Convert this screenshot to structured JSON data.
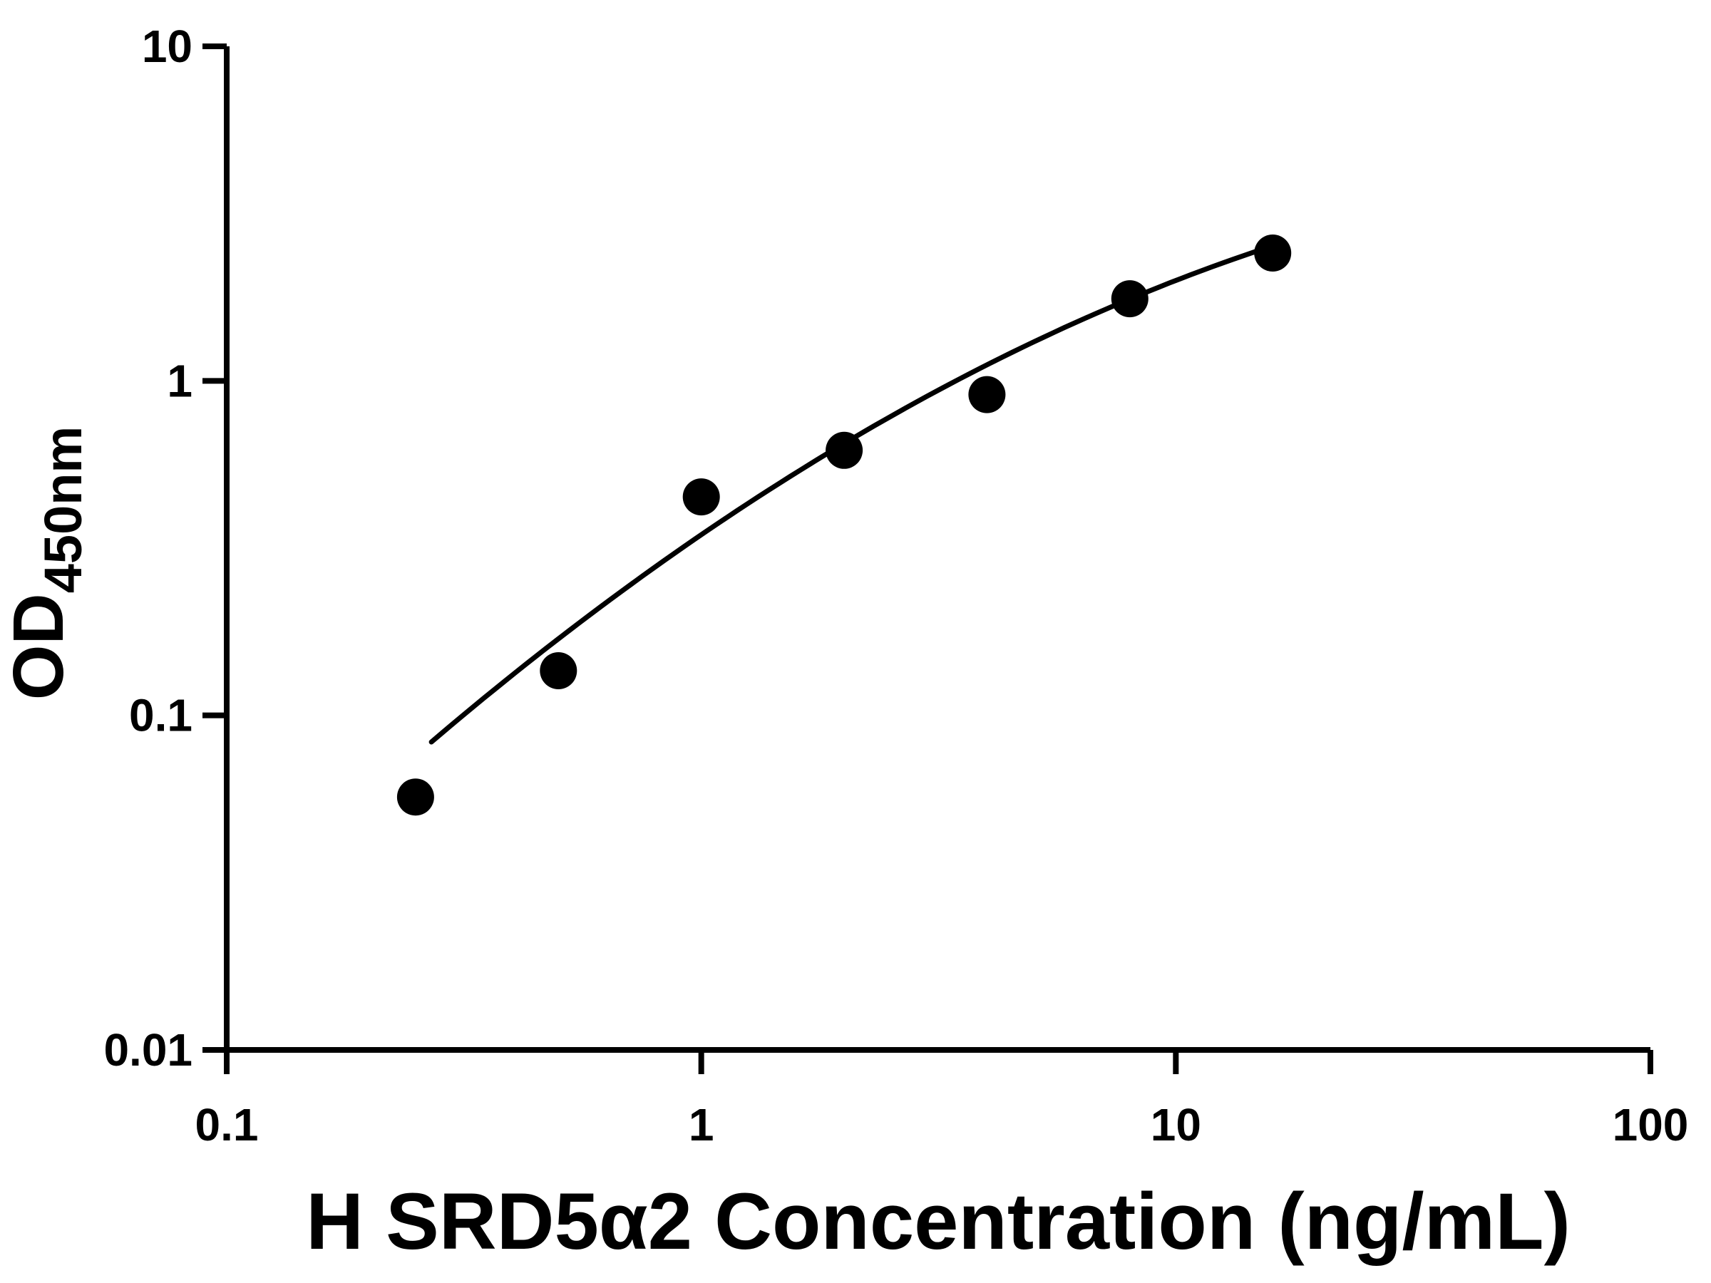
{
  "figure": {
    "background": "#ffffff",
    "foreground": "#000000"
  },
  "chart_data": {
    "type": "scatter",
    "title": "",
    "xlabel": "H SRD5α2 Concentration (ng/mL)",
    "ylabel": "OD450nm",
    "ylabel_main": "OD",
    "ylabel_sub": "450nm",
    "x_scale": "log",
    "y_scale": "log",
    "xlim": [
      0.1,
      100
    ],
    "ylim": [
      0.01,
      10
    ],
    "grid": false,
    "legend": false,
    "x_ticks": [
      {
        "value": 0.1,
        "label": "0.1"
      },
      {
        "value": 1,
        "label": "1"
      },
      {
        "value": 10,
        "label": "10"
      },
      {
        "value": 100,
        "label": "100"
      }
    ],
    "y_ticks": [
      {
        "value": 0.01,
        "label": "0.01"
      },
      {
        "value": 0.1,
        "label": "0.1"
      },
      {
        "value": 1,
        "label": "1"
      },
      {
        "value": 10,
        "label": "10"
      }
    ],
    "series": [
      {
        "name": "fitted-curve",
        "type": "line",
        "color": "#000000",
        "fit": {
          "model": "loglog-quadratic",
          "a": -0.46,
          "b": 0.97,
          "c": -0.21,
          "x_range": [
            0.27,
            16.2
          ]
        }
      },
      {
        "name": "standard-points",
        "type": "scatter",
        "marker": "circle",
        "color": "#000000",
        "x": [
          0.25,
          0.5,
          1,
          2,
          4,
          8,
          16
        ],
        "y": [
          0.057,
          0.136,
          0.45,
          0.62,
          0.91,
          1.76,
          2.41
        ]
      }
    ]
  }
}
